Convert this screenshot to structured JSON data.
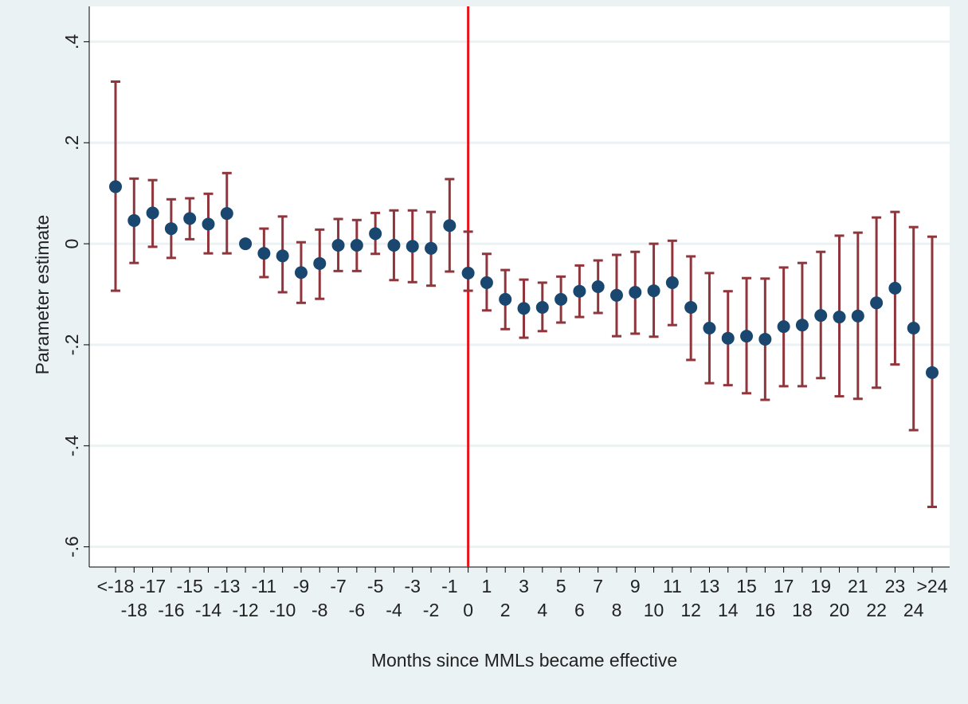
{
  "chart_data": {
    "type": "errorbar",
    "xlabel": "Months since MMLs became effective",
    "ylabel": "Parameter estimate",
    "categories": [
      "<-18",
      "-18",
      "-17",
      "-16",
      "-15",
      "-14",
      "-13",
      "-12",
      "-11",
      "-10",
      "-9",
      "-8",
      "-7",
      "-6",
      "-5",
      "-4",
      "-3",
      "-2",
      "-1",
      "0",
      "1",
      "2",
      "3",
      "4",
      "5",
      "6",
      "7",
      "8",
      "9",
      "10",
      "11",
      "12",
      "13",
      "14",
      "15",
      "16",
      "17",
      "18",
      "19",
      "20",
      "21",
      "22",
      "23",
      "24",
      ">24"
    ],
    "series": [
      {
        "color": "#1a476f",
        "ci_color": "#90353b",
        "values": [
          0.113,
          0.046,
          0.061,
          0.03,
          0.05,
          0.039,
          0.06,
          0,
          -0.019,
          -0.024,
          -0.057,
          -0.039,
          -0.003,
          -0.003,
          0.02,
          -0.003,
          -0.005,
          -0.009,
          0.036,
          -0.058,
          -0.077,
          -0.11,
          -0.128,
          -0.126,
          -0.11,
          -0.094,
          -0.085,
          -0.102,
          -0.096,
          -0.093,
          -0.077,
          -0.126,
          -0.167,
          -0.187,
          -0.183,
          -0.189,
          -0.164,
          -0.161,
          -0.142,
          -0.145,
          -0.143,
          -0.117,
          -0.088,
          -0.167,
          -0.255
        ],
        "upper": [
          0.321,
          0.129,
          0.126,
          0.088,
          0.09,
          0.099,
          0.14,
          null,
          0.03,
          0.054,
          0.003,
          0.028,
          0.049,
          0.047,
          0.061,
          0.066,
          0.066,
          0.063,
          0.128,
          0.024,
          -0.02,
          -0.052,
          -0.071,
          -0.077,
          -0.065,
          -0.043,
          -0.033,
          -0.022,
          -0.016,
          0.0,
          0.006,
          -0.025,
          -0.058,
          -0.094,
          -0.068,
          -0.069,
          -0.047,
          -0.038,
          -0.016,
          0.016,
          0.022,
          0.052,
          0.063,
          0.033,
          0.014
        ],
        "lower": [
          -0.093,
          -0.038,
          -0.006,
          -0.028,
          0.009,
          -0.019,
          -0.019,
          null,
          -0.066,
          -0.096,
          -0.117,
          -0.109,
          -0.054,
          -0.054,
          -0.02,
          -0.072,
          -0.076,
          -0.083,
          -0.055,
          -0.093,
          -0.132,
          -0.169,
          -0.186,
          -0.173,
          -0.156,
          -0.145,
          -0.137,
          -0.183,
          -0.178,
          -0.184,
          -0.161,
          -0.23,
          -0.276,
          -0.28,
          -0.296,
          -0.309,
          -0.282,
          -0.282,
          -0.266,
          -0.302,
          -0.307,
          -0.285,
          -0.239,
          -0.369,
          -0.521
        ]
      }
    ],
    "ylim": [
      -0.64,
      0.47
    ],
    "yticks": [
      {
        "value": -0.6,
        "label": "-.6"
      },
      {
        "value": -0.4,
        "label": "-.4"
      },
      {
        "value": -0.2,
        "label": "-.2"
      },
      0,
      {
        "value": 0.2,
        "label": ".2"
      },
      {
        "value": 0.4,
        "label": ".4"
      }
    ],
    "grid": true,
    "xline": {
      "category": "0",
      "color": "#e8141b"
    }
  }
}
